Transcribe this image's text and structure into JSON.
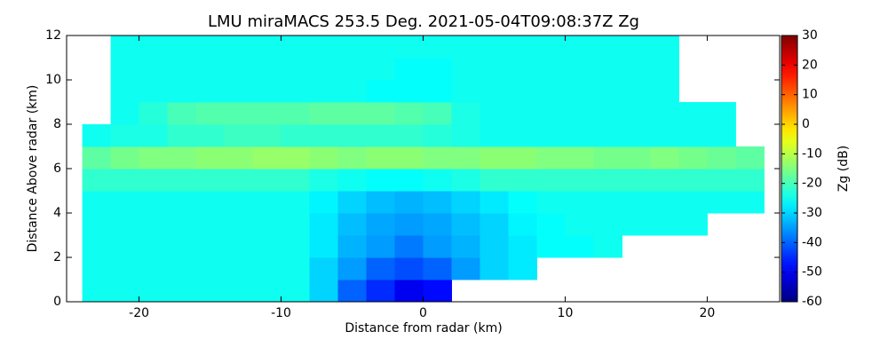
{
  "chart_data": {
    "type": "heatmap",
    "title": "LMU miraMACS 253.5 Deg. 2021-05-04T09:08:37Z  Zg",
    "x_label": "Distance from radar (km)",
    "y_label": "Distance Above radar  (km)",
    "colorbar_label": "Zg (dB)",
    "colormap": "jet",
    "clim": [
      -60,
      30
    ],
    "cbar_ticks": [
      -60,
      -50,
      -40,
      -30,
      -20,
      -10,
      0,
      10,
      20,
      30
    ],
    "xlim": [
      -25.1,
      25.1
    ],
    "xticks": [
      -20,
      -10,
      0,
      10,
      20
    ],
    "ylim": [
      0,
      12
    ],
    "yticks": [
      0,
      2,
      4,
      6,
      8,
      10,
      12
    ],
    "x": [
      -23,
      -21,
      -19,
      -17,
      -15,
      -13,
      -11,
      -9,
      -7,
      -5,
      -3,
      -1,
      1,
      3,
      5,
      7,
      9,
      11,
      13,
      15,
      17,
      19,
      21,
      23
    ],
    "y": [
      0.5,
      1.5,
      2.5,
      3.5,
      4.5,
      5.5,
      6.5,
      7.5,
      8.5,
      9.5,
      10.5,
      11.5
    ],
    "values": [
      [
        -25,
        -25,
        -25,
        -25,
        -25,
        -25,
        -25,
        -25,
        -30,
        -40,
        -45,
        -50,
        -48,
        null,
        null,
        null,
        null,
        null,
        null,
        null,
        null,
        null,
        null,
        null
      ],
      [
        -25,
        -25,
        -25,
        -25,
        -25,
        -25,
        -25,
        -25,
        -30,
        -35,
        -40,
        -42,
        -40,
        -35,
        -30,
        -28,
        null,
        null,
        null,
        null,
        null,
        null,
        null,
        null
      ],
      [
        -25,
        -25,
        -25,
        -25,
        -25,
        -25,
        -25,
        -25,
        -28,
        -33,
        -35,
        -38,
        -35,
        -33,
        -30,
        -28,
        -26,
        -26,
        -25,
        null,
        null,
        null,
        null,
        null
      ],
      [
        -25,
        -25,
        -25,
        -25,
        -25,
        -25,
        -25,
        -25,
        -28,
        -32,
        -34,
        -35,
        -34,
        -32,
        -30,
        -27,
        -26,
        -25,
        -25,
        -25,
        -25,
        -25,
        null,
        null
      ],
      [
        -25,
        -25,
        -25,
        -25,
        -25,
        -25,
        -25,
        -25,
        -27,
        -30,
        -32,
        -33,
        -32,
        -30,
        -28,
        -26,
        -25,
        -25,
        -25,
        -25,
        -25,
        -25,
        -25,
        -25
      ],
      [
        -22,
        -22,
        -22,
        -22,
        -22,
        -22,
        -22,
        -22,
        -24,
        -25,
        -26,
        -26,
        -25,
        -24,
        -22,
        -22,
        -22,
        -22,
        -22,
        -22,
        -22,
        -22,
        -22,
        -22
      ],
      [
        -18,
        -16,
        -15,
        -15,
        -14,
        -14,
        -13,
        -13,
        -14,
        -15,
        -14,
        -14,
        -15,
        -15,
        -14,
        -14,
        -15,
        -15,
        -16,
        -16,
        -15,
        -16,
        -17,
        -18
      ],
      [
        -25,
        -24,
        -24,
        -22,
        -22,
        -21,
        -21,
        -22,
        -22,
        -22,
        -22,
        -22,
        -23,
        -24,
        -25,
        -25,
        -25,
        -25,
        -25,
        -25,
        -25,
        -25,
        -25,
        null
      ],
      [
        null,
        -25,
        -23,
        -20,
        -19,
        -19,
        -19,
        -19,
        -18,
        -18,
        -18,
        -19,
        -20,
        -24,
        -25,
        -25,
        -25,
        -25,
        -25,
        -25,
        -25,
        -25,
        -25,
        null
      ],
      [
        null,
        -25,
        -25,
        -25,
        -25,
        -25,
        -25,
        -25,
        -25,
        -25,
        -26,
        -26,
        -26,
        -25,
        -25,
        -25,
        -25,
        -25,
        -25,
        -25,
        -25,
        null,
        null,
        null
      ],
      [
        null,
        -25,
        -25,
        -25,
        -25,
        -25,
        -25,
        -25,
        -25,
        -25,
        -25,
        -26,
        -26,
        -25,
        -25,
        -25,
        -25,
        -25,
        -25,
        -25,
        -25,
        null,
        null,
        null
      ],
      [
        null,
        -25,
        -25,
        -25,
        -25,
        -25,
        -25,
        -25,
        -25,
        -25,
        -25,
        -25,
        -25,
        -25,
        -25,
        -25,
        -25,
        -25,
        -25,
        -25,
        -25,
        null,
        null,
        null
      ]
    ]
  }
}
